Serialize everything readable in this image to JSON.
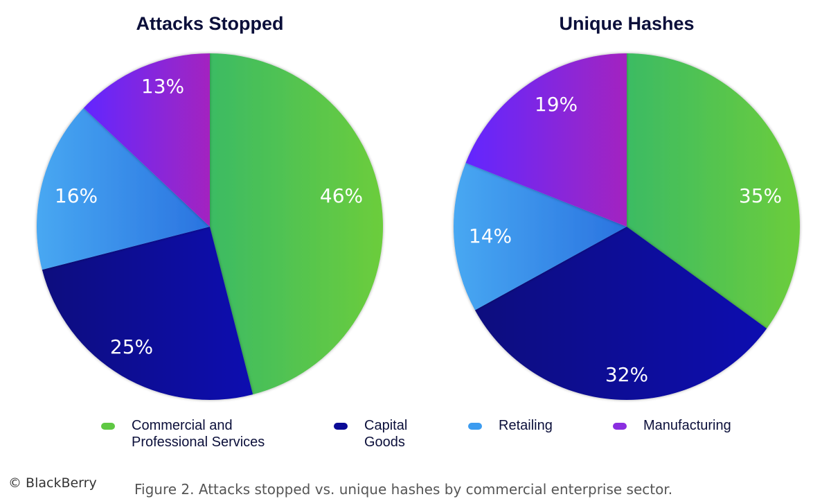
{
  "chart_data": [
    {
      "type": "pie",
      "title": "Attacks Stopped",
      "categories": [
        "Commercial and Professional Services",
        "Capital Goods",
        "Retailing",
        "Manufacturing"
      ],
      "values": [
        46,
        25,
        16,
        13
      ],
      "labels": [
        "46%",
        "25%",
        "16%",
        "13%"
      ],
      "unit": "%"
    },
    {
      "type": "pie",
      "title": "Unique Hashes",
      "categories": [
        "Commercial and Professional Services",
        "Capital Goods",
        "Retailing",
        "Manufacturing"
      ],
      "values": [
        35,
        32,
        14,
        19
      ],
      "labels": [
        "35%",
        "32%",
        "14%",
        "19%"
      ],
      "unit": "%"
    }
  ],
  "legend": {
    "items": [
      {
        "label": "Commercial and\nProfessional Services",
        "color": "#5fc843"
      },
      {
        "label": "Capital\nGoods",
        "color": "#0a0a96"
      },
      {
        "label": "Retailing",
        "color": "#3c9cf0"
      },
      {
        "label": "Manufacturing",
        "color": "#8a2ee0"
      }
    ]
  },
  "colors": {
    "commercial": [
      "#3cbb63",
      "#6ccd3c"
    ],
    "capital": [
      "#08087e",
      "#0c0cb0"
    ],
    "retailing": [
      "#48a8f2",
      "#2a73e0"
    ],
    "manufacturing": [
      "#6228ff",
      "#a324c0"
    ]
  },
  "caption": "Figure 2. Attacks stopped vs. unique hashes by commercial enterprise sector.",
  "copyright": "© BlackBerry"
}
